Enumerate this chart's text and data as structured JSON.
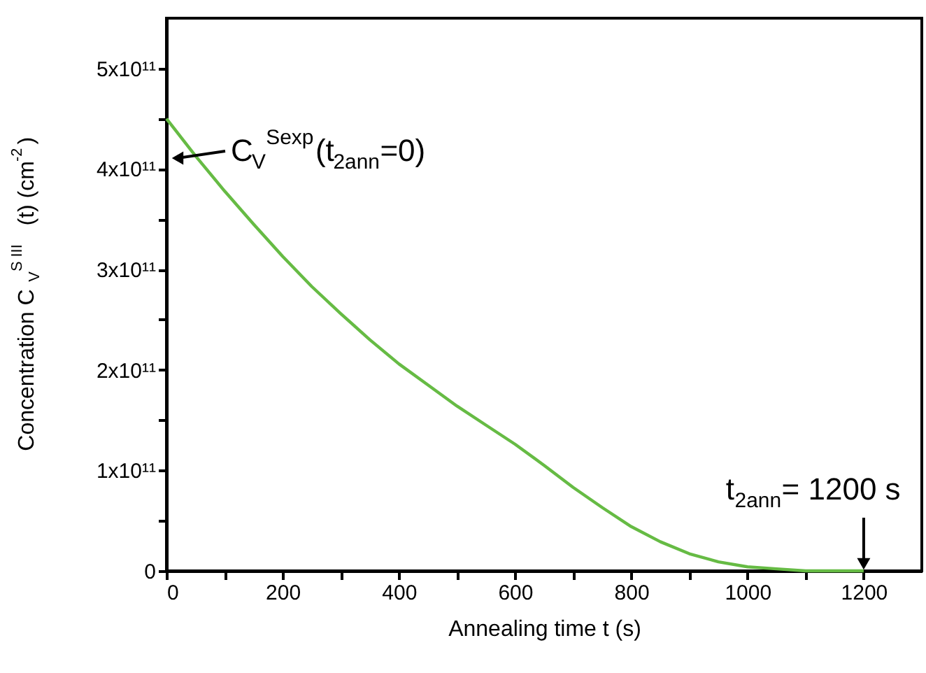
{
  "chart_data": {
    "type": "line",
    "xlabel": "Annealing time t (s)",
    "ylabel": "Concentration C$_{V}$$^{S III}$(t) (cm$^{-2}$)",
    "x": [
      0,
      50,
      100,
      150,
      200,
      250,
      300,
      350,
      400,
      450,
      500,
      550,
      600,
      650,
      700,
      750,
      800,
      850,
      900,
      950,
      1000,
      1050,
      1100,
      1150,
      1200
    ],
    "series": [
      {
        "color": "#66bb44",
        "values": [
          450000000000.0,
          413000000000.0,
          378000000000.0,
          345000000000.0,
          313000000000.0,
          283000000000.0,
          256000000000.0,
          230000000000.0,
          206000000000.0,
          185000000000.0,
          164000000000.0,
          145000000000.0,
          126000000000.0,
          105000000000.0,
          83000000000.0,
          63000000000.0,
          44000000000.0,
          29000000000.0,
          17000000000.0,
          9000000000.0,
          4000000000.0,
          2000000000.0,
          0,
          0,
          0
        ]
      }
    ],
    "xlim": [
      0,
      1300
    ],
    "xticks": [
      0,
      {
        "value": 100,
        "label": null
      },
      200,
      {
        "value": 300,
        "label": null
      },
      400,
      {
        "value": 500,
        "label": null
      },
      600,
      {
        "value": 700,
        "label": null
      },
      800,
      {
        "value": 900,
        "label": null
      },
      1000,
      {
        "value": 1100,
        "label": null
      },
      1200
    ],
    "ylim": [
      0,
      550000000000.0
    ],
    "yticks": [
      {
        "value": 0,
        "label": "0"
      },
      {
        "value": 50000000000.0,
        "label": null
      },
      {
        "value": 100000000000.0,
        "label": "1x10¹¹"
      },
      {
        "value": 150000000000.0,
        "label": null
      },
      {
        "value": 200000000000.0,
        "label": "2x10¹¹"
      },
      {
        "value": 250000000000.0,
        "label": null
      },
      {
        "value": 300000000000.0,
        "label": "3x10¹¹"
      },
      {
        "value": 350000000000.0,
        "label": null
      },
      {
        "value": 400000000000.0,
        "label": "4x10¹¹"
      },
      {
        "value": 450000000000.0,
        "label": null
      },
      {
        "value": 500000000000.0,
        "label": "5x10¹¹"
      }
    ],
    "annotations": [
      "C$_{V}$$^{Sexp}$(t$_{2ann}$=0)",
      {
        "text": "t$_{2ann}$= 1200 s",
        "x": 1200,
        "y": 0
      }
    ],
    "grid": false,
    "marker": "none",
    "line_style": "solid"
  }
}
